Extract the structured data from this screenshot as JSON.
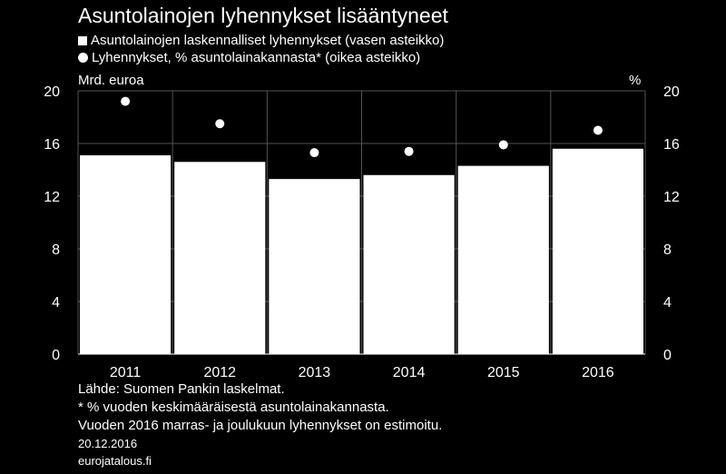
{
  "title": "Asuntolainojen lyhennykset lisääntyneet",
  "legend": {
    "bars": "Asuntolainojen laskennalliset lyhennykset (vasen asteikko)",
    "dots": "Lyhennykset, % asuntolainakannasta* (oikea asteikko)"
  },
  "units": {
    "left": "Mrd. euroa",
    "right": "%"
  },
  "chart_data": {
    "type": "bar",
    "categories": [
      "2011",
      "2012",
      "2013",
      "2014",
      "2015",
      "2016"
    ],
    "series": [
      {
        "name": "Asuntolainojen laskennalliset lyhennykset (vasen asteikko)",
        "type": "bar",
        "axis": "left",
        "values": [
          15.1,
          14.6,
          13.3,
          13.6,
          14.3,
          15.6
        ]
      },
      {
        "name": "Lyhennykset, % asuntolainakannasta* (oikea asteikko)",
        "type": "scatter",
        "axis": "right",
        "values": [
          19.2,
          17.5,
          15.3,
          15.4,
          15.9,
          17.0
        ]
      }
    ],
    "ylim": [
      0,
      20
    ],
    "y2lim": [
      0,
      20
    ],
    "yticks": [
      "0",
      "4",
      "8",
      "12",
      "16",
      "20"
    ],
    "y2ticks": [
      "0",
      "4",
      "8",
      "12",
      "16",
      "20"
    ],
    "grid": true,
    "colors": {
      "background": "#000000",
      "bars": "#ffffff",
      "dots": "#ffffff",
      "grid": "#555555"
    }
  },
  "footer": {
    "source": "Lähde: Suomen Pankin laskelmat.",
    "note1": "* % vuoden keskimääräisestä asuntolainakannasta.",
    "note2": "Vuoden 2016 marras- ja joulukuun lyhennykset on estimoitu.",
    "date": "20.12.2016",
    "site": "eurojatalous.fi"
  }
}
